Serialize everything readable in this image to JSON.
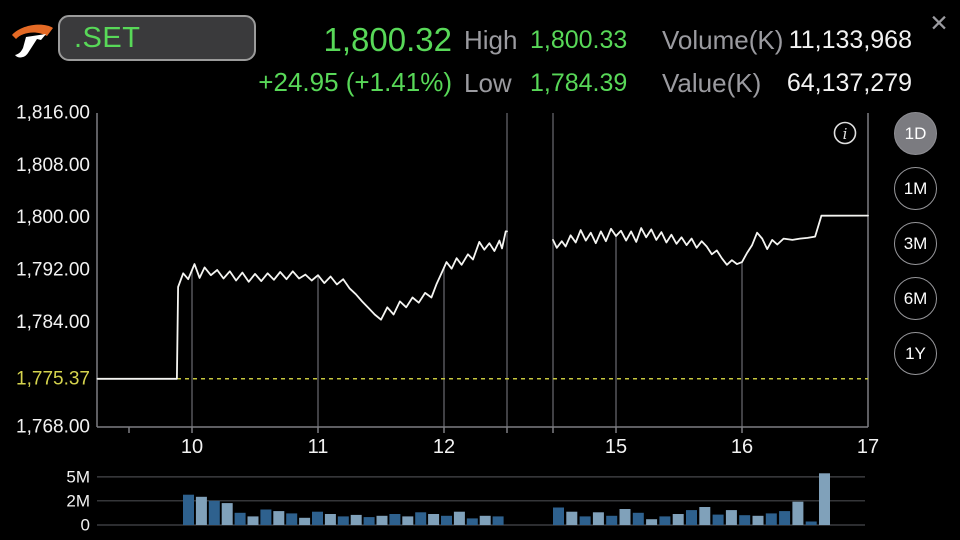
{
  "colors": {
    "green": "#58d858",
    "label_gray": "#9b9ba0",
    "white": "#f2f2f2",
    "yellow_text": "#d6d44e",
    "yellow_line": "#c6c63e",
    "grid": "#55565a",
    "axis": "#7d7e82",
    "vol_grid": "#47484c",
    "bar_dark": "#2e618e",
    "bar_light": "#80a1ba",
    "line": "#f5f5f2"
  },
  "header": {
    "symbol": ".SET",
    "last_price": "1,800.32",
    "change": "+24.95 (+1.41%)",
    "high_label": "High",
    "high_value": "1,800.33",
    "low_label": "Low",
    "low_value": "1,784.39",
    "volume_label": "Volume(K)",
    "volume_value": "11,133,968",
    "value_label": "Value(K)",
    "value_value": "64,137,279",
    "close_glyph": "✕"
  },
  "info_icon_glyph": "i",
  "range_buttons": [
    {
      "label": "1D",
      "selected": true
    },
    {
      "label": "1M",
      "selected": false
    },
    {
      "label": "3M",
      "selected": false
    },
    {
      "label": "6M",
      "selected": false
    },
    {
      "label": "1Y",
      "selected": false
    }
  ],
  "chart_data": {
    "type": "line",
    "title": ".SET intraday (1D)",
    "y_axis": {
      "min": 1768,
      "max": 1816,
      "ticks": [
        {
          "label": "1,816.00",
          "value": 1816.0
        },
        {
          "label": "1,808.00",
          "value": 1808.0
        },
        {
          "label": "1,800.00",
          "value": 1800.0
        },
        {
          "label": "1,792.00",
          "value": 1792.0
        },
        {
          "label": "1,784.00",
          "value": 1784.0
        },
        {
          "label": "1,768.00",
          "value": 1768.0
        }
      ]
    },
    "prev_close": {
      "label": "1,775.37",
      "value": 1775.37
    },
    "x_axis": {
      "ticks": [
        {
          "label": "10",
          "t": 10
        },
        {
          "label": "11",
          "t": 11
        },
        {
          "label": "12",
          "t": 12
        },
        {
          "label": "15",
          "t": 15
        },
        {
          "label": "16",
          "t": 16
        },
        {
          "label": "17",
          "t": 17
        }
      ],
      "session_breaks": [
        12.5,
        14.5
      ],
      "minor_ticks": [
        9.5
      ]
    },
    "price_series": {
      "name": ".SET",
      "sessions": [
        [
          [
            9.25,
            1775.37
          ],
          [
            9.88,
            1775.37
          ],
          [
            9.89,
            1789.4
          ],
          [
            9.93,
            1791.5
          ],
          [
            9.97,
            1790.6
          ],
          [
            10.02,
            1792.9
          ],
          [
            10.06,
            1790.8
          ],
          [
            10.1,
            1792.4
          ],
          [
            10.15,
            1791.2
          ],
          [
            10.2,
            1792.0
          ],
          [
            10.25,
            1790.7
          ],
          [
            10.3,
            1791.8
          ],
          [
            10.35,
            1790.4
          ],
          [
            10.4,
            1791.6
          ],
          [
            10.45,
            1790.2
          ],
          [
            10.5,
            1791.4
          ],
          [
            10.55,
            1790.3
          ],
          [
            10.6,
            1791.5
          ],
          [
            10.65,
            1790.5
          ],
          [
            10.7,
            1791.7
          ],
          [
            10.75,
            1790.6
          ],
          [
            10.8,
            1791.8
          ],
          [
            10.85,
            1790.7
          ],
          [
            10.9,
            1791.3
          ],
          [
            10.95,
            1790.4
          ],
          [
            11.0,
            1791.2
          ],
          [
            11.05,
            1790.0
          ],
          [
            11.1,
            1791.0
          ],
          [
            11.15,
            1789.8
          ],
          [
            11.2,
            1790.6
          ],
          [
            11.25,
            1789.2
          ],
          [
            11.3,
            1788.3
          ],
          [
            11.35,
            1787.2
          ],
          [
            11.4,
            1786.2
          ],
          [
            11.45,
            1785.2
          ],
          [
            11.5,
            1784.4
          ],
          [
            11.55,
            1786.3
          ],
          [
            11.6,
            1785.2
          ],
          [
            11.65,
            1787.2
          ],
          [
            11.7,
            1786.3
          ],
          [
            11.75,
            1787.8
          ],
          [
            11.8,
            1787.0
          ],
          [
            11.85,
            1788.5
          ],
          [
            11.9,
            1787.8
          ],
          [
            11.94,
            1789.8
          ],
          [
            11.98,
            1791.5
          ],
          [
            12.02,
            1793.2
          ],
          [
            12.06,
            1792.2
          ],
          [
            12.1,
            1793.8
          ],
          [
            12.14,
            1792.8
          ],
          [
            12.19,
            1794.4
          ],
          [
            12.23,
            1793.6
          ],
          [
            12.28,
            1796.3
          ],
          [
            12.32,
            1795.1
          ],
          [
            12.36,
            1796.1
          ],
          [
            12.4,
            1794.9
          ],
          [
            12.44,
            1796.5
          ],
          [
            12.46,
            1795.3
          ],
          [
            12.49,
            1797.9
          ],
          [
            12.5,
            1797.9
          ]
        ],
        [
          [
            14.5,
            1796.6
          ],
          [
            14.53,
            1795.4
          ],
          [
            14.57,
            1796.4
          ],
          [
            14.6,
            1795.6
          ],
          [
            14.64,
            1797.3
          ],
          [
            14.68,
            1796.2
          ],
          [
            14.72,
            1798.1
          ],
          [
            14.76,
            1796.5
          ],
          [
            14.8,
            1797.7
          ],
          [
            14.84,
            1796.1
          ],
          [
            14.88,
            1797.9
          ],
          [
            14.92,
            1796.4
          ],
          [
            14.96,
            1798.3
          ],
          [
            15.0,
            1797.2
          ],
          [
            15.04,
            1798.0
          ],
          [
            15.08,
            1796.5
          ],
          [
            15.12,
            1797.9
          ],
          [
            15.16,
            1796.3
          ],
          [
            15.2,
            1798.4
          ],
          [
            15.24,
            1797.0
          ],
          [
            15.28,
            1798.2
          ],
          [
            15.32,
            1796.6
          ],
          [
            15.36,
            1797.8
          ],
          [
            15.4,
            1796.2
          ],
          [
            15.44,
            1797.4
          ],
          [
            15.48,
            1796.0
          ],
          [
            15.52,
            1797.0
          ],
          [
            15.56,
            1795.8
          ],
          [
            15.6,
            1796.8
          ],
          [
            15.64,
            1795.4
          ],
          [
            15.68,
            1796.4
          ],
          [
            15.72,
            1795.6
          ],
          [
            15.76,
            1794.4
          ],
          [
            15.8,
            1795.0
          ],
          [
            15.84,
            1793.8
          ],
          [
            15.88,
            1792.8
          ],
          [
            15.92,
            1793.5
          ],
          [
            15.96,
            1792.9
          ],
          [
            16.0,
            1793.2
          ],
          [
            16.04,
            1794.6
          ],
          [
            16.08,
            1795.8
          ],
          [
            16.12,
            1797.7
          ],
          [
            16.16,
            1796.8
          ],
          [
            16.2,
            1795.2
          ],
          [
            16.24,
            1796.6
          ],
          [
            16.28,
            1795.9
          ],
          [
            16.33,
            1796.8
          ],
          [
            16.4,
            1796.6
          ],
          [
            16.46,
            1796.8
          ],
          [
            16.52,
            1796.9
          ],
          [
            16.58,
            1797.1
          ],
          [
            16.63,
            1800.3
          ],
          [
            17.0,
            1800.32
          ]
        ]
      ]
    },
    "volume_panel": {
      "unit": "M",
      "ticks": [
        {
          "label": "5M",
          "value": 5
        },
        {
          "label": "2M",
          "value": 2
        },
        {
          "label": "0",
          "value": 0
        }
      ],
      "sessions": [
        [
          [
            2.7,
            "d"
          ],
          [
            2.45,
            "l"
          ],
          [
            2.0,
            "d"
          ],
          [
            1.75,
            "l"
          ],
          [
            0.8,
            "d"
          ],
          [
            0.5,
            "l"
          ],
          [
            1.1,
            "d"
          ],
          [
            0.95,
            "l"
          ],
          [
            0.75,
            "d"
          ],
          [
            0.4,
            "l"
          ],
          [
            0.9,
            "d"
          ],
          [
            0.7,
            "l"
          ],
          [
            0.5,
            "d"
          ],
          [
            0.62,
            "l"
          ],
          [
            0.45,
            "d"
          ],
          [
            0.55,
            "l"
          ],
          [
            0.7,
            "d"
          ],
          [
            0.5,
            "l"
          ],
          [
            0.85,
            "d"
          ],
          [
            0.7,
            "l"
          ],
          [
            0.55,
            "d"
          ],
          [
            0.9,
            "l"
          ],
          [
            0.35,
            "d"
          ],
          [
            0.55,
            "l"
          ],
          [
            0.5,
            "d"
          ]
        ],
        [
          [
            1.3,
            "d"
          ],
          [
            0.9,
            "l"
          ],
          [
            0.5,
            "d"
          ],
          [
            0.85,
            "l"
          ],
          [
            0.55,
            "d"
          ],
          [
            1.15,
            "l"
          ],
          [
            0.8,
            "d"
          ],
          [
            0.3,
            "l"
          ],
          [
            0.5,
            "d"
          ],
          [
            0.7,
            "l"
          ],
          [
            1.05,
            "d"
          ],
          [
            1.35,
            "l"
          ],
          [
            0.65,
            "d"
          ],
          [
            1.05,
            "l"
          ],
          [
            0.6,
            "d"
          ],
          [
            0.55,
            "l"
          ],
          [
            0.75,
            "d"
          ],
          [
            0.95,
            "d"
          ],
          [
            1.9,
            "l"
          ],
          [
            0.15,
            "d"
          ],
          [
            5.5,
            "l"
          ]
        ]
      ]
    }
  }
}
